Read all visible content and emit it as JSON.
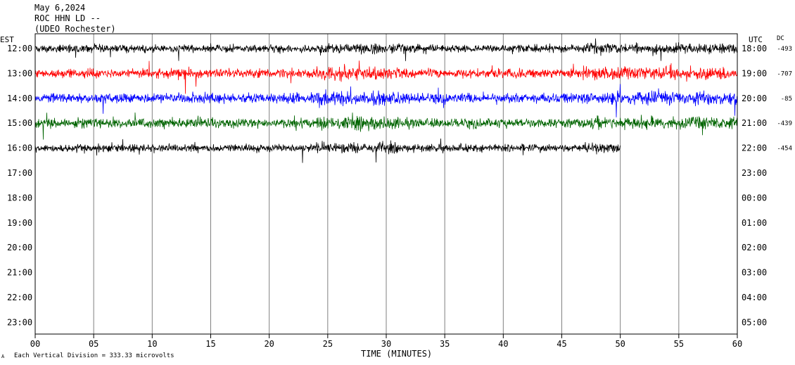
{
  "header": {
    "line1": "May 6,2024",
    "line2": "ROC HHN LD --",
    "line3": "(UDEO Rochester)"
  },
  "axes": {
    "left_label": "EST",
    "right_label": "UTC",
    "dc_label": "DC",
    "xlabel": "TIME (MINUTES)",
    "footer_note": "Each Vertical Division =  333.33 microvolts",
    "footer_mark": "A"
  },
  "chart_data": {
    "type": "line",
    "title": "May 6,2024 ROC HHN LD -- (UDEO Rochester)",
    "xlabel": "TIME (MINUTES)",
    "xlim": [
      0,
      60
    ],
    "x_ticks": [
      "00",
      "05",
      "10",
      "15",
      "20",
      "25",
      "30",
      "35",
      "40",
      "45",
      "50",
      "55",
      "60"
    ],
    "est_hours": [
      "12:00",
      "13:00",
      "14:00",
      "15:00",
      "16:00",
      "17:00",
      "18:00",
      "19:00",
      "20:00",
      "21:00",
      "22:00",
      "23:00"
    ],
    "utc_hours": [
      "18:00",
      "19:00",
      "20:00",
      "21:00",
      "22:00",
      "23:00",
      "00:00",
      "01:00",
      "02:00",
      "03:00",
      "04:00",
      "05:00"
    ],
    "grid": "vertical lines every 5 minutes",
    "series": [
      {
        "row": 0,
        "color": "#000000",
        "dc": "-493",
        "end_minute": 60,
        "amplitude": 9
      },
      {
        "row": 1,
        "color": "#ff0000",
        "dc": "-707",
        "end_minute": 60,
        "amplitude": 11
      },
      {
        "row": 2,
        "color": "#0000ff",
        "dc": "-85",
        "end_minute": 60,
        "amplitude": 12
      },
      {
        "row": 3,
        "color": "#006400",
        "dc": "-439",
        "end_minute": 60,
        "amplitude": 11
      },
      {
        "row": 4,
        "color": "#000000",
        "dc": "-454",
        "end_minute": 50,
        "amplitude": 9
      }
    ]
  }
}
